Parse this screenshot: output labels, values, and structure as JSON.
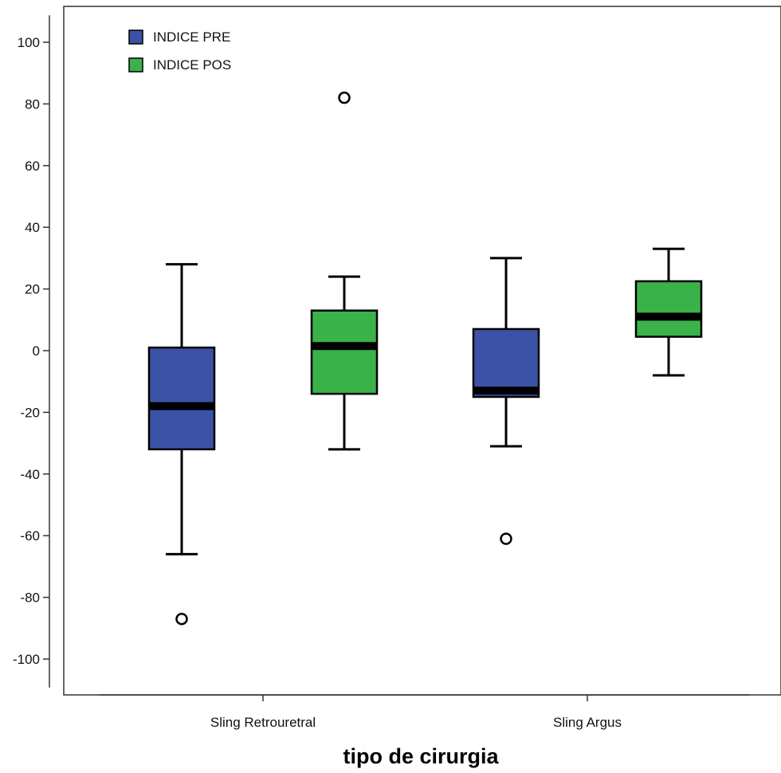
{
  "chart_data": {
    "type": "boxplot",
    "title": "",
    "xlabel": "tipo de cirurgia",
    "ylabel": "",
    "ylim": [
      -110,
      110
    ],
    "yticks": [
      -100,
      -80,
      -60,
      -40,
      -20,
      0,
      20,
      40,
      60,
      80,
      100
    ],
    "ytick_labels": [
      "-100",
      "-80",
      "-60",
      "-40",
      "-20",
      "0",
      "20",
      "40",
      "60",
      "80",
      "100"
    ],
    "categories": [
      "Sling Retrouretral",
      "Sling Argus"
    ],
    "legend_position": "top-left",
    "grid": false,
    "series": [
      {
        "name": "INDICE PRE",
        "color": "#3c52a6",
        "boxes": [
          {
            "category": "Sling Retrouretral",
            "whisker_low": -66,
            "q1": -32,
            "median": -18,
            "q3": 1,
            "whisker_high": 28,
            "outliers": [
              -87
            ]
          },
          {
            "category": "Sling Argus",
            "whisker_low": -31,
            "q1": -15,
            "median": -13,
            "q3": 7,
            "whisker_high": 30,
            "outliers": [
              -61
            ]
          }
        ]
      },
      {
        "name": "INDICE POS",
        "color": "#3bb14a",
        "boxes": [
          {
            "category": "Sling Retrouretral",
            "whisker_low": -32,
            "q1": -14,
            "median": 1.5,
            "q3": 13,
            "whisker_high": 24,
            "outliers": [
              82
            ]
          },
          {
            "category": "Sling Argus",
            "whisker_low": -8,
            "q1": 4.5,
            "median": 11,
            "q3": 22.5,
            "whisker_high": 33,
            "outliers": []
          }
        ]
      }
    ]
  }
}
